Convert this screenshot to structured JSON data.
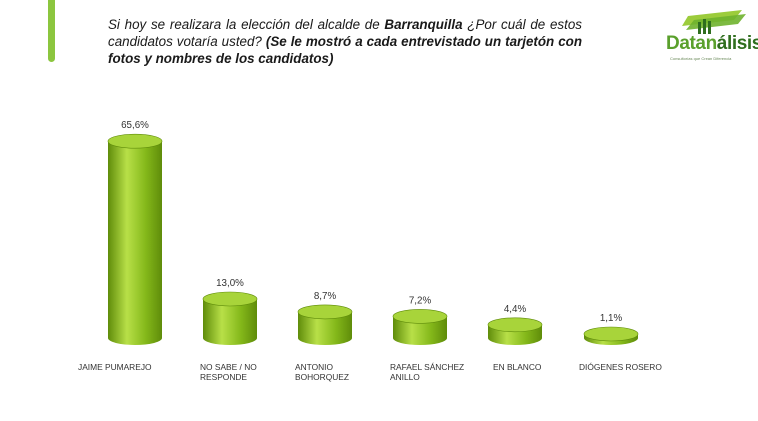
{
  "question": {
    "part1": "Si hoy se realizara la elección del alcalde de ",
    "city": "Barranquilla",
    "part2": " ¿Por cuál de estos candidatos votaría usted? ",
    "note": "(Se le mostró a cada entrevistado un tarjetón con fotos y nombres de los candidatos)"
  },
  "logo": {
    "word_a": "Datan",
    "word_b": "álisis",
    "tagline": "Consultorías que Crean Diferencia"
  },
  "colors": {
    "bar_body": "#84b81a",
    "bar_light": "#b8e048",
    "bar_dark": "#5f8c0a",
    "bar_top": "#a8d43a",
    "accent": "#8cc63f"
  },
  "chart_data": {
    "type": "bar",
    "categories": [
      [
        "JAIME PUMAREJO"
      ],
      [
        "NO SABE / NO",
        "RESPONDE"
      ],
      [
        "ANTONIO",
        "BOHORQUEZ"
      ],
      [
        "RAFAEL SÁNCHEZ",
        "ANILLO"
      ],
      [
        "EN BLANCO"
      ],
      [
        "DIÓGENES ROSERO"
      ]
    ],
    "values": [
      65.6,
      13.0,
      8.7,
      7.2,
      4.4,
      1.1
    ],
    "value_labels": [
      "65,6%",
      "13,0%",
      "8,7%",
      "7,2%",
      "4,4%",
      "1,1%"
    ],
    "ylim": [
      0,
      70
    ],
    "grid": false,
    "style": "3d-cylinder"
  }
}
